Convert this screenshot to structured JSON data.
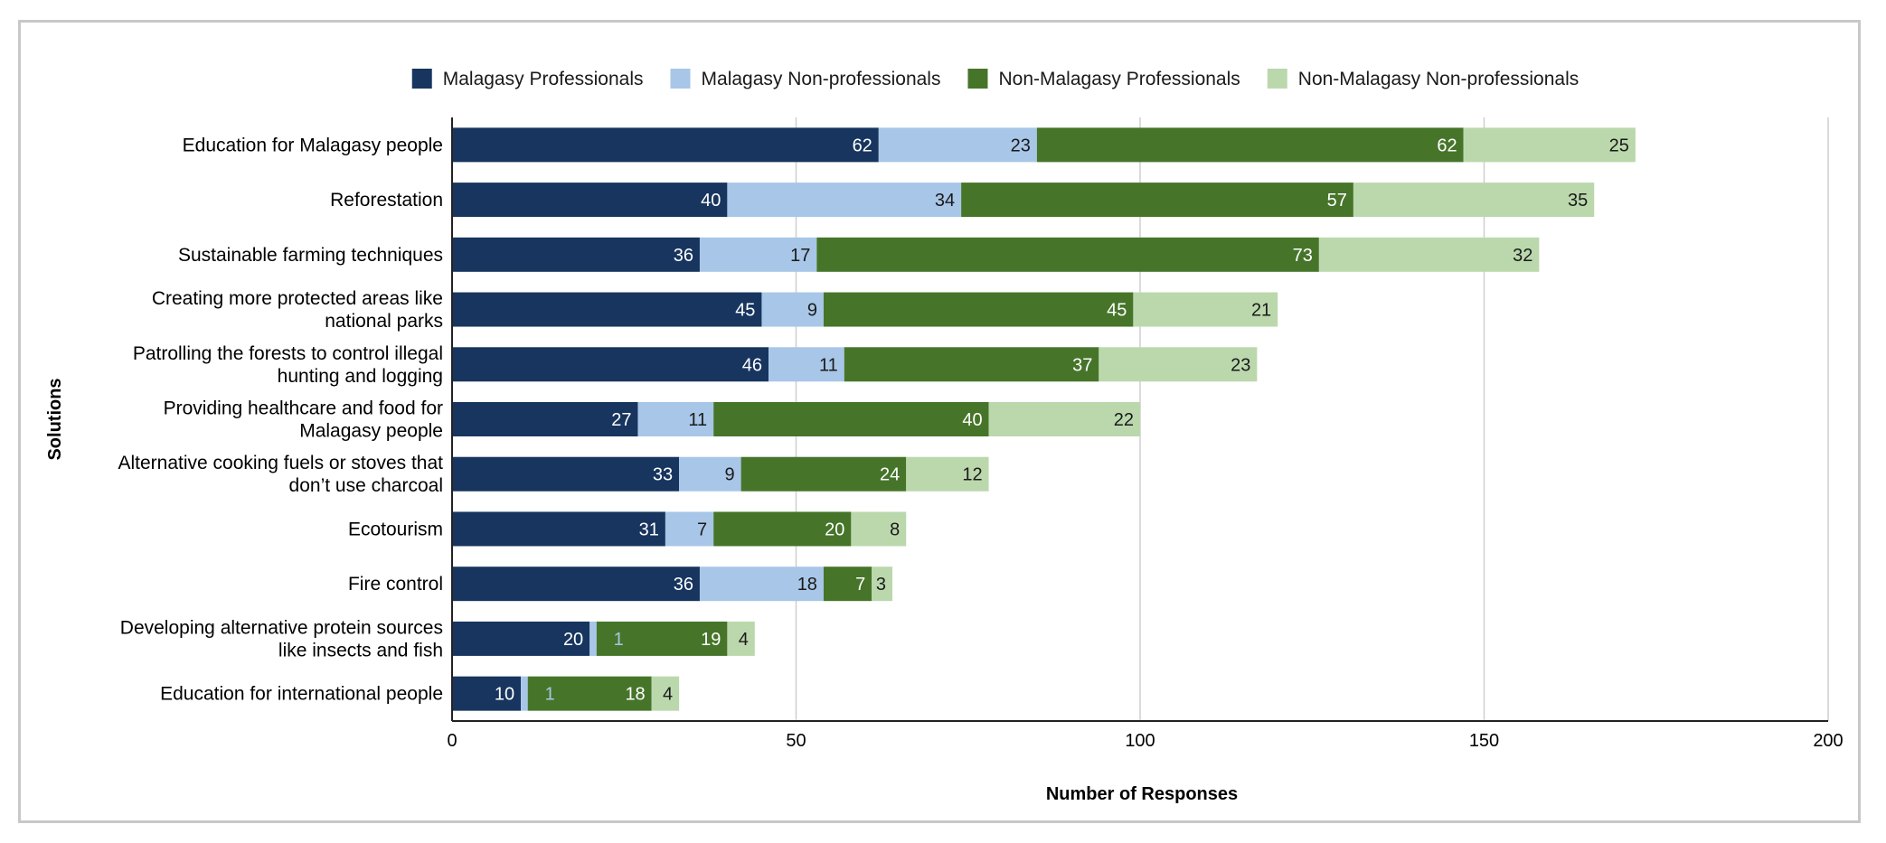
{
  "chart_data": {
    "type": "bar",
    "orientation": "horizontal",
    "stacked": true,
    "xlabel": "Number of Responses",
    "ylabel": "Solutions",
    "xlim": [
      0,
      200
    ],
    "xticks": [
      0,
      50,
      100,
      150,
      200
    ],
    "grid": true,
    "legend_position": "top",
    "categories": [
      [
        "Education for Malagasy people"
      ],
      [
        "Reforestation"
      ],
      [
        "Sustainable farming techniques"
      ],
      [
        "Creating more protected areas like",
        "national parks"
      ],
      [
        "Patrolling the forests to control illegal",
        "hunting and logging"
      ],
      [
        "Providing healthcare and food for",
        "Malagasy people"
      ],
      [
        "Alternative cooking fuels or stoves that",
        "don’t use charcoal"
      ],
      [
        "Ecotourism"
      ],
      [
        "Fire control"
      ],
      [
        "Developing alternative protein sources",
        "like insects and fish"
      ],
      [
        "Education for international people"
      ]
    ],
    "series": [
      {
        "name": "Malagasy Professionals",
        "color": "#17355e",
        "label_color": "#ffffff",
        "values": [
          62,
          40,
          36,
          45,
          46,
          27,
          33,
          31,
          36,
          20,
          10
        ]
      },
      {
        "name": "Malagasy Non-professionals",
        "color": "#a8c6e7",
        "label_color": "#1a1a1a",
        "values": [
          23,
          34,
          17,
          9,
          11,
          11,
          9,
          7,
          18,
          1,
          1
        ]
      },
      {
        "name": "Non-Malagasy Professionals",
        "color": "#46752a",
        "label_color": "#ffffff",
        "values": [
          62,
          57,
          73,
          45,
          37,
          40,
          24,
          20,
          7,
          19,
          18
        ]
      },
      {
        "name": "Non-Malagasy Non-professionals",
        "color": "#bbd8ad",
        "label_color": "#1a1a1a",
        "values": [
          25,
          35,
          32,
          21,
          23,
          22,
          12,
          8,
          3,
          4,
          4
        ]
      }
    ]
  }
}
